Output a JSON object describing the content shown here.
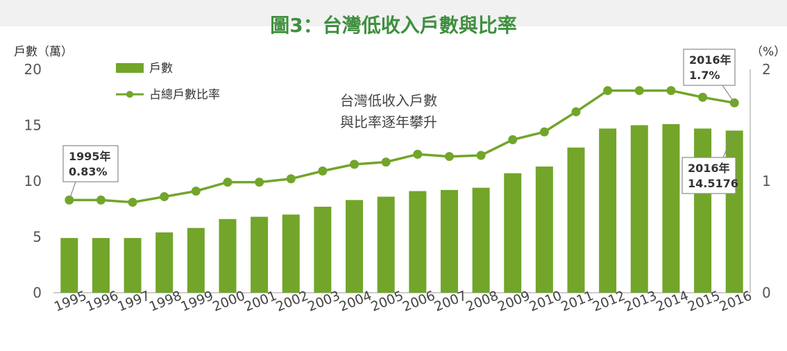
{
  "chart_data": {
    "type": "bar",
    "title": "圖3：台灣低收入戶數與比率",
    "left_axis_unit": "戶數（萬）",
    "right_axis_unit": "（%）",
    "ylim": [
      0,
      20
    ],
    "y_ticks": [
      "0",
      "5",
      "10",
      "15",
      "20"
    ],
    "y2lim": [
      0,
      2
    ],
    "y2_ticks": [
      "0",
      "1",
      "2"
    ],
    "categories": [
      "1995",
      "1996",
      "1997",
      "1998",
      "1999",
      "2000",
      "2001",
      "2002",
      "2003",
      "2004",
      "2005",
      "2006",
      "2007",
      "2008",
      "2009",
      "2010",
      "2011",
      "2012",
      "2013",
      "2014",
      "2015",
      "2016"
    ],
    "series": [
      {
        "name": "戶數",
        "type": "bar",
        "axis": "left",
        "color": "#72a52a",
        "values": [
          4.9,
          4.9,
          4.9,
          5.4,
          5.8,
          6.6,
          6.8,
          7.0,
          7.7,
          8.3,
          8.6,
          9.1,
          9.2,
          9.4,
          10.7,
          11.3,
          13.0,
          14.7,
          15.0,
          15.1,
          14.7,
          14.5176
        ]
      },
      {
        "name": "占總戶數比率",
        "type": "line",
        "axis": "right",
        "color": "#72a52a",
        "values": [
          0.83,
          0.83,
          0.81,
          0.86,
          0.91,
          0.99,
          0.99,
          1.02,
          1.09,
          1.15,
          1.17,
          1.24,
          1.22,
          1.23,
          1.37,
          1.44,
          1.62,
          1.81,
          1.81,
          1.81,
          1.75,
          1.7
        ]
      }
    ],
    "annotation_text": [
      "台灣低收入戶數",
      "與比率逐年攀升"
    ],
    "callouts": [
      {
        "lines": [
          "1995年",
          "0.83%"
        ],
        "series": 1,
        "index": 0
      },
      {
        "lines": [
          "2016年",
          "1.7%"
        ],
        "series": 1,
        "index": 21
      },
      {
        "lines": [
          "2016年",
          "14.5176"
        ],
        "series": 0,
        "index": 21
      }
    ],
    "legend_position": "top-left",
    "grid": false
  }
}
